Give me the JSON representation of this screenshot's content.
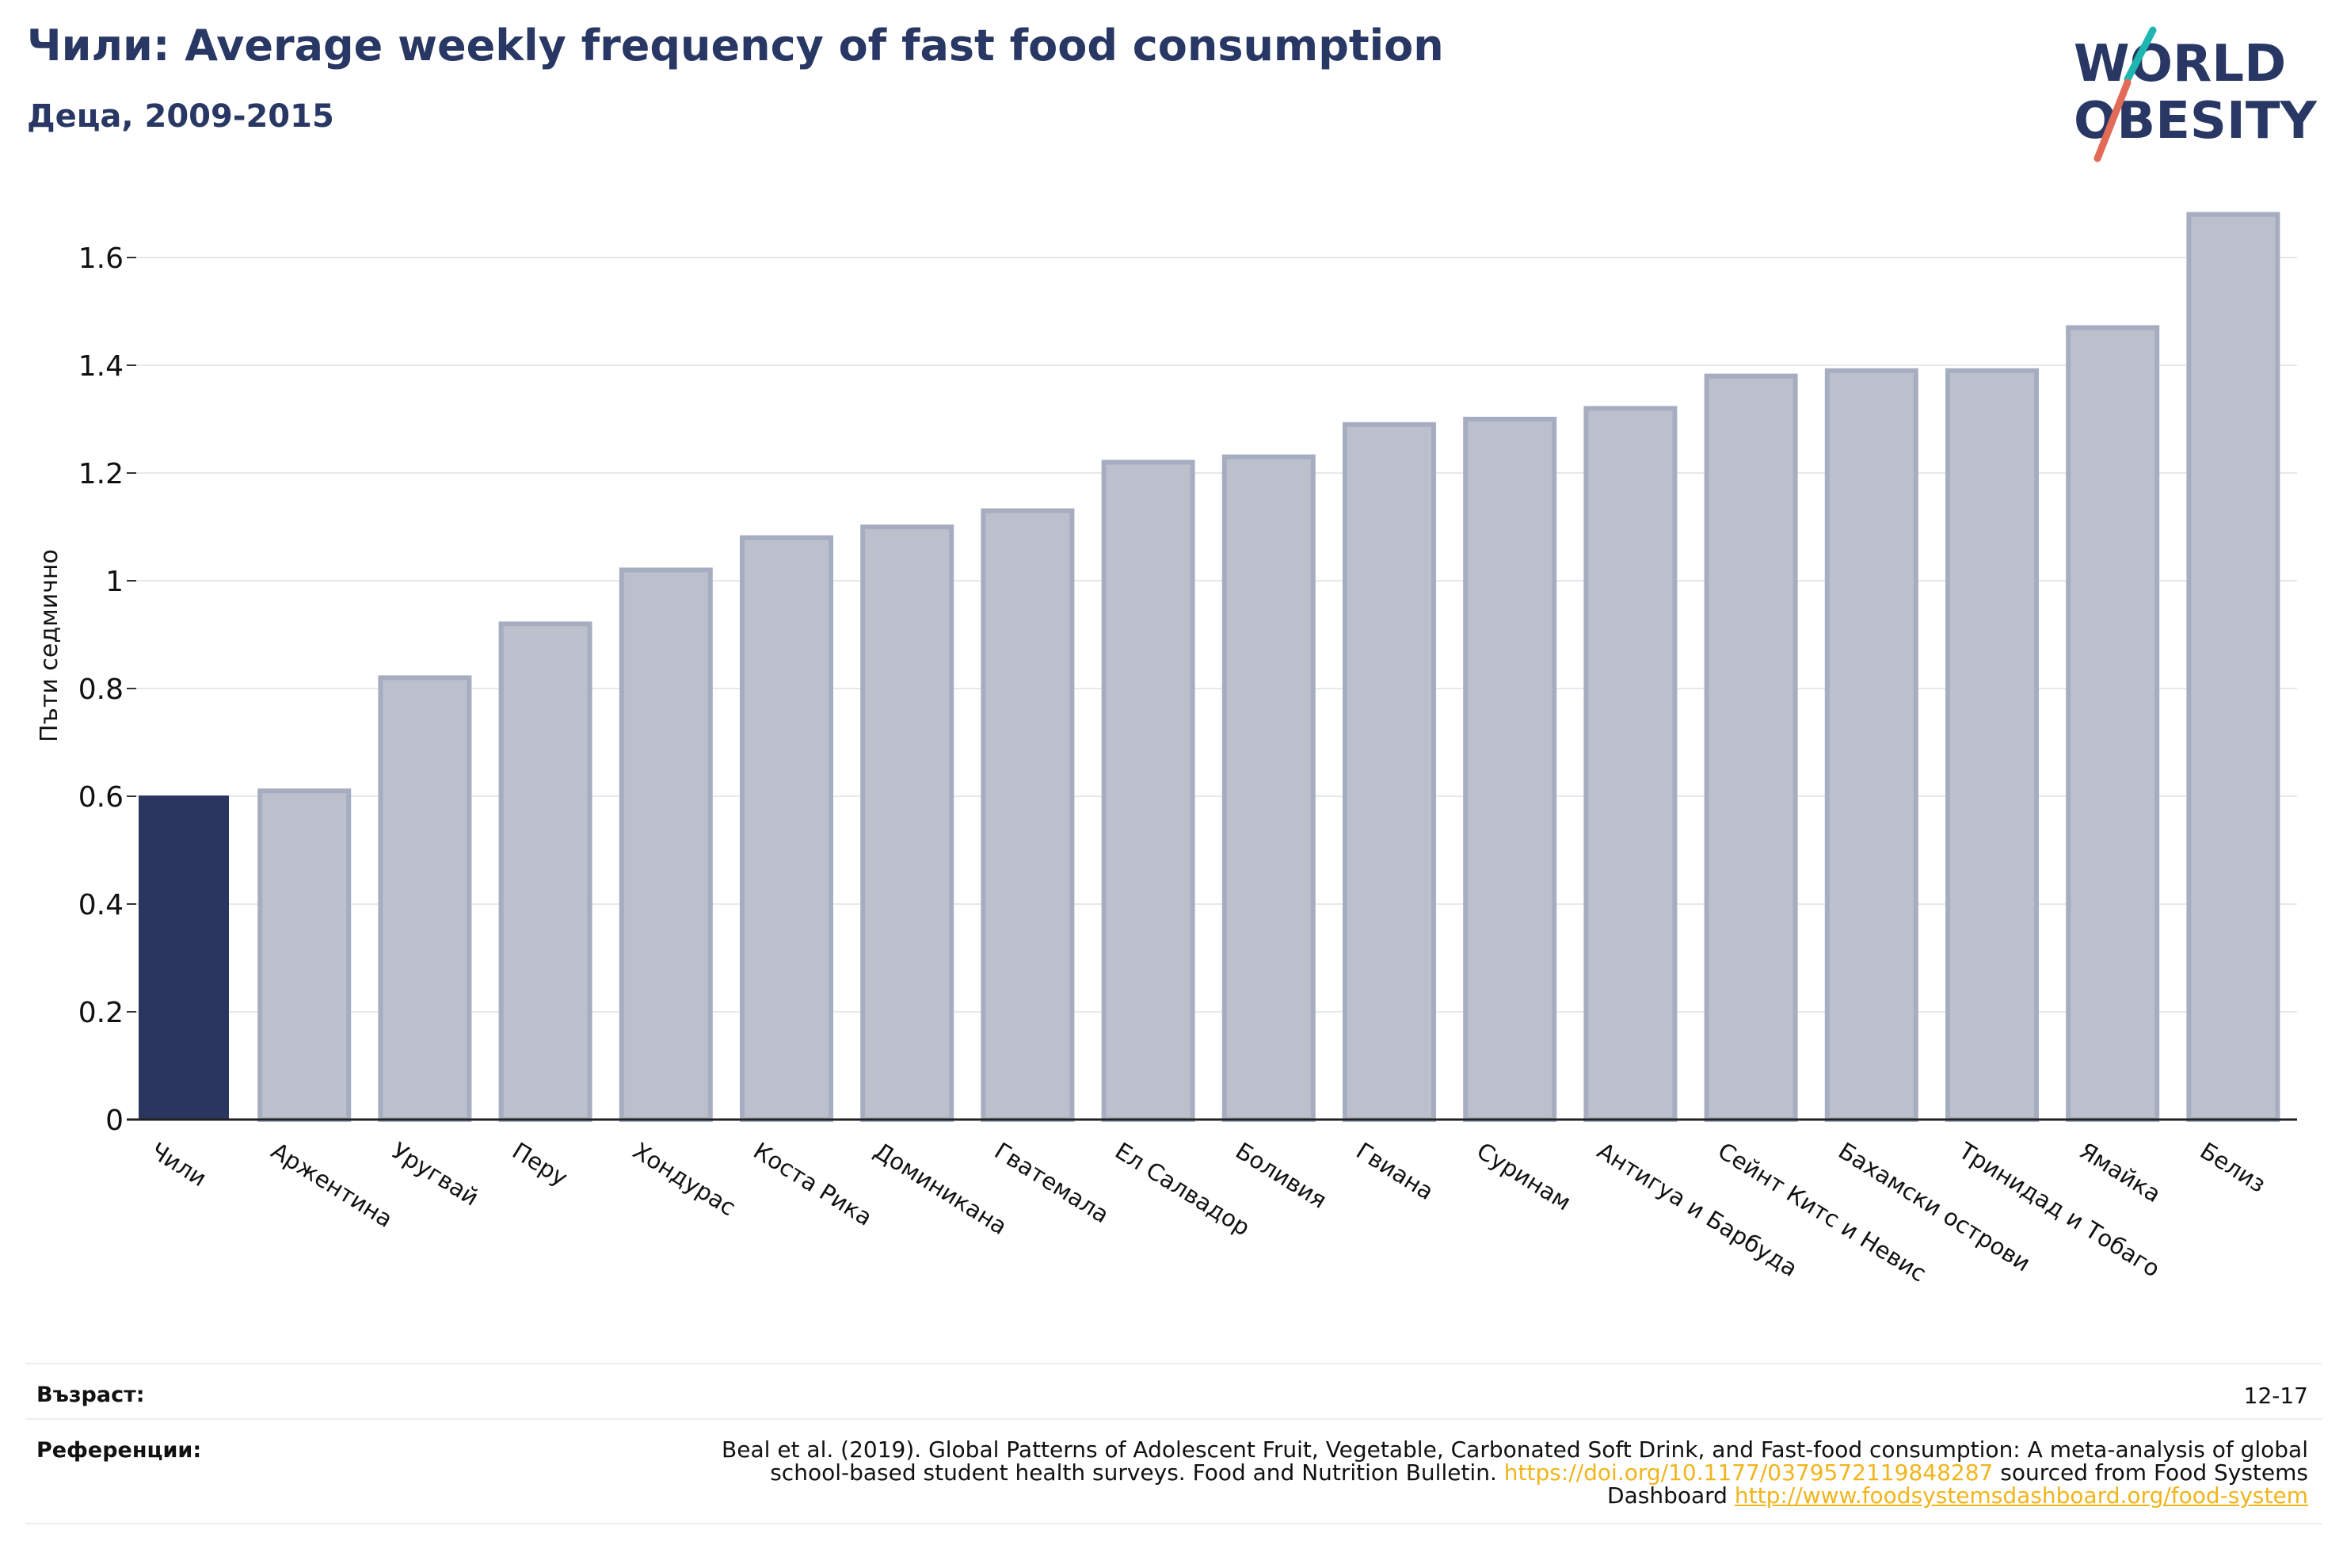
{
  "header": {
    "title": "Чили: Average weekly frequency of fast food consumption",
    "subtitle": "Деца, 2009-2015"
  },
  "logo": {
    "line1": "WORLD",
    "line2": "OBESITY",
    "colors": [
      "#283763",
      "#1fb5b0",
      "#e26b58"
    ]
  },
  "colors": {
    "highlight": "#2a3560",
    "bar": "#bcc0cd",
    "bar_edge": "#a7adc0",
    "title": "#283763",
    "link": "#f1b51c"
  },
  "chart_data": {
    "type": "bar",
    "title": "Чили: Average weekly frequency of fast food consumption",
    "subtitle": "Деца, 2009-2015",
    "ylabel": "Пъти седмично",
    "xlabel": "",
    "ylim": [
      0,
      1.7
    ],
    "yticks": [
      0,
      0.2,
      0.4,
      0.6,
      0.8,
      1,
      1.2,
      1.4,
      1.6
    ],
    "ytick_labels": [
      "0",
      "0.2",
      "0.4",
      "0.6",
      "0.8",
      "1",
      "1.2",
      "1.4",
      "1.6"
    ],
    "grid": true,
    "highlight": "Чили",
    "categories": [
      "Чили",
      "Аржентина",
      "Уругвай",
      "Перу",
      "Хондурас",
      "Коста Рика",
      "Доминикана",
      "Гватемала",
      "Ел Салвадор",
      "Боливия",
      "Гвиана",
      "Суринам",
      "Антигуа и Барбуда",
      "Сейнт Китс и Невис",
      "Бахамски острови",
      "Тринидад и Тобаго",
      "Ямайка",
      "Белиз"
    ],
    "values": [
      0.6,
      0.61,
      0.82,
      0.92,
      1.02,
      1.08,
      1.1,
      1.13,
      1.22,
      1.23,
      1.29,
      1.3,
      1.32,
      1.38,
      1.39,
      1.39,
      1.47,
      1.68
    ]
  },
  "footer": {
    "age_label": "Възраст:",
    "age_value": "12-17",
    "refs_label": "Референции:",
    "refs_text_1": "Beal et al. (2019). Global Patterns of Adolescent Fruit, Vegetable, Carbonated Soft Drink, and Fast-food consumption: A meta-analysis of global school-based student health surveys. Food and Nutrition Bulletin.",
    "refs_link_1": "https://doi.org/10.1177/0379572119848287",
    "refs_text_2": "sourced from Food Systems Dashboard",
    "refs_link_2": "http://www.foodsystemsdashboard.org/food-system"
  }
}
